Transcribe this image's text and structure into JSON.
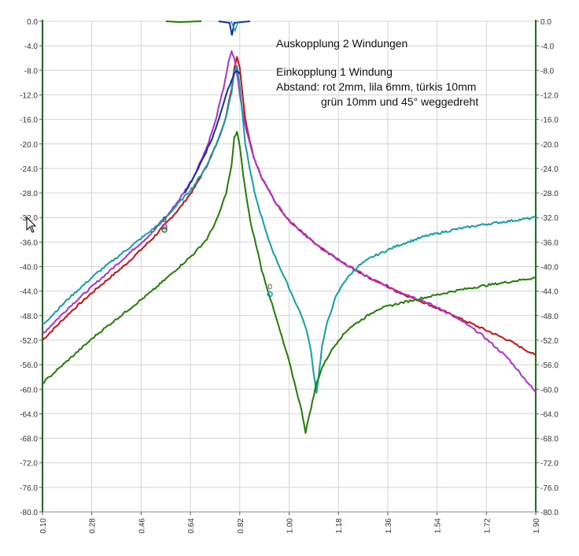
{
  "chart_data": {
    "type": "line",
    "annotation_lines": [
      "Auskopplung 2 Windungen",
      "",
      "Einkopplung 1 Windung",
      "Abstand: rot 2mm, lila 6mm, türkis 10mm",
      "grün 10mm und 45° weggedreht"
    ],
    "xlim": [
      0.1,
      1.9
    ],
    "ylim": [
      -80.0,
      0.0
    ],
    "x_ticks": [
      "0.10",
      "0.28",
      "0.46",
      "0.64",
      "0.82",
      "1.00",
      "1.18",
      "1.36",
      "1.54",
      "1.72",
      "1.90"
    ],
    "y_ticks": [
      "0.0",
      "-4.0",
      "-8.0",
      "-12.0",
      "-16.0",
      "-20.0",
      "-24.0",
      "-28.0",
      "-32.0",
      "-36.0",
      "-40.0",
      "-44.0",
      "-48.0",
      "-52.0",
      "-56.0",
      "-60.0",
      "-64.0",
      "-68.0",
      "-72.0",
      "-76.0",
      "-80.0"
    ],
    "grid": true,
    "marker_label": "0",
    "series": [
      {
        "color": "#d01010",
        "x": [
          0.1,
          0.2,
          0.3,
          0.4,
          0.5,
          0.55,
          0.6,
          0.65,
          0.7,
          0.74,
          0.77,
          0.79,
          0.8,
          0.81,
          0.82,
          0.84,
          0.87,
          0.9,
          0.95,
          1.0,
          1.1,
          1.2,
          1.3,
          1.4,
          1.5,
          1.6,
          1.7,
          1.8,
          1.9
        ],
        "y": [
          -52.0,
          -47.5,
          -43.5,
          -39.8,
          -35.5,
          -33.0,
          -30.5,
          -27.5,
          -23.5,
          -19.5,
          -15.5,
          -11.0,
          -7.5,
          -5.8,
          -7.5,
          -16.0,
          -22.0,
          -25.5,
          -29.5,
          -32.5,
          -36.5,
          -39.5,
          -42.0,
          -44.2,
          -46.0,
          -48.0,
          -50.0,
          -52.0,
          -54.5
        ]
      },
      {
        "color": "#b030d0",
        "x": [
          0.1,
          0.2,
          0.3,
          0.4,
          0.5,
          0.55,
          0.6,
          0.65,
          0.7,
          0.73,
          0.76,
          0.78,
          0.79,
          0.8,
          0.81,
          0.82,
          0.84,
          0.87,
          0.9,
          0.95,
          1.0,
          1.1,
          1.2,
          1.3,
          1.4,
          1.5,
          1.6,
          1.7,
          1.8,
          1.9
        ],
        "y": [
          -51.0,
          -46.5,
          -42.5,
          -38.5,
          -34.5,
          -32.0,
          -29.0,
          -25.5,
          -20.5,
          -16.5,
          -11.0,
          -6.5,
          -5.0,
          -6.0,
          -8.5,
          -12.0,
          -17.0,
          -22.0,
          -25.5,
          -29.5,
          -32.5,
          -36.5,
          -39.5,
          -42.0,
          -44.0,
          -45.8,
          -48.0,
          -51.0,
          -55.0,
          -60.5
        ]
      },
      {
        "color": "#10a0a8",
        "x": [
          0.1,
          0.2,
          0.3,
          0.4,
          0.5,
          0.55,
          0.6,
          0.65,
          0.7,
          0.74,
          0.77,
          0.79,
          0.8,
          0.81,
          0.82,
          0.84,
          0.86,
          0.88,
          0.9,
          0.92,
          0.95,
          0.98,
          1.0,
          1.03,
          1.05,
          1.07,
          1.08,
          1.09,
          1.1,
          1.11,
          1.12,
          1.14,
          1.17,
          1.2,
          1.25,
          1.3,
          1.4,
          1.5,
          1.6,
          1.7,
          1.8,
          1.9
        ],
        "y": [
          -49.5,
          -45.0,
          -41.0,
          -37.5,
          -34.0,
          -32.0,
          -29.5,
          -27.0,
          -23.5,
          -19.5,
          -15.5,
          -11.5,
          -8.0,
          -7.5,
          -10.5,
          -20.0,
          -25.0,
          -29.0,
          -32.0,
          -35.0,
          -38.5,
          -41.5,
          -43.5,
          -46.5,
          -48.5,
          -51.5,
          -54.0,
          -57.5,
          -60.5,
          -57.0,
          -53.0,
          -49.0,
          -45.0,
          -42.5,
          -40.0,
          -38.5,
          -36.5,
          -35.0,
          -34.0,
          -33.2,
          -32.6,
          -32.0
        ]
      },
      {
        "color": "#208000",
        "x": [
          0.1,
          0.2,
          0.3,
          0.4,
          0.5,
          0.55,
          0.6,
          0.65,
          0.7,
          0.74,
          0.77,
          0.79,
          0.8,
          0.81,
          0.82,
          0.84,
          0.86,
          0.88,
          0.9,
          0.92,
          0.95,
          0.98,
          1.0,
          1.02,
          1.04,
          1.05,
          1.06,
          1.07,
          1.08,
          1.09,
          1.1,
          1.12,
          1.15,
          1.18,
          1.22,
          1.27,
          1.32,
          1.4,
          1.5,
          1.6,
          1.7,
          1.8,
          1.9
        ],
        "y": [
          -59.0,
          -55.0,
          -51.0,
          -47.5,
          -44.0,
          -42.0,
          -40.0,
          -38.0,
          -35.5,
          -32.0,
          -28.0,
          -23.5,
          -19.0,
          -18.0,
          -20.5,
          -27.5,
          -33.0,
          -36.5,
          -40.5,
          -43.5,
          -48.0,
          -52.5,
          -55.5,
          -59.0,
          -62.5,
          -64.5,
          -67.0,
          -65.0,
          -63.0,
          -61.0,
          -59.0,
          -56.5,
          -54.0,
          -52.0,
          -50.0,
          -48.5,
          -47.0,
          -46.0,
          -45.0,
          -44.0,
          -43.2,
          -42.5,
          -41.8
        ]
      },
      {
        "color": "#1030b0",
        "x": [
          0.62,
          0.68,
          0.72,
          0.75,
          0.77,
          0.79,
          0.8,
          0.81,
          0.82
        ],
        "y": [
          -28.0,
          -23.0,
          -19.0,
          -15.0,
          -12.0,
          -9.5,
          -8.5,
          -8.2,
          -8.6
        ]
      }
    ],
    "markers": [
      {
        "x": 0.545,
        "y": -33.5,
        "color": "#b030d0"
      },
      {
        "x": 0.545,
        "y": -34.0,
        "color": "#208000"
      },
      {
        "x": 0.93,
        "y": -44.5,
        "color": "#10a0a8"
      }
    ]
  }
}
